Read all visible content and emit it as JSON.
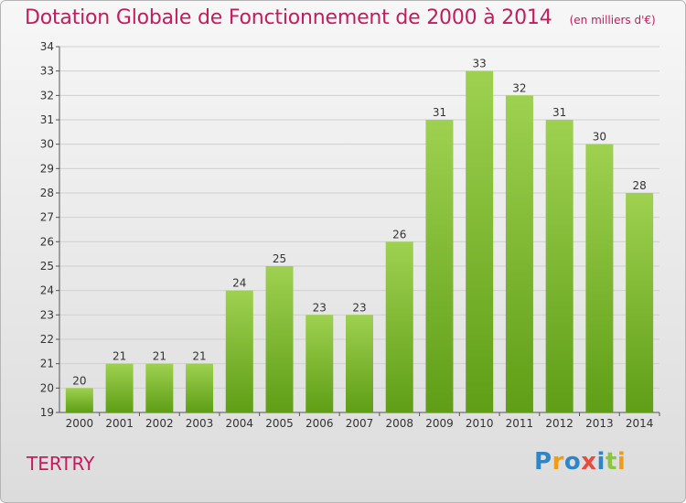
{
  "title": "Dotation Globale de Fonctionnement de 2000 à 2014",
  "unit": "(en milliers d'€)",
  "commune": "TERTRY",
  "logo": "Proxiti",
  "colors": {
    "title": "#c41c5c",
    "bar_top": "#9ed150",
    "bar_bottom": "#5f9e16"
  },
  "chart_data": {
    "type": "bar",
    "title": "Dotation Globale de Fonctionnement de 2000 à 2014",
    "subtitle": "(en milliers d'€)",
    "xlabel": "",
    "ylabel": "",
    "ylim": [
      19,
      34
    ],
    "yticks": [
      19,
      20,
      21,
      22,
      23,
      24,
      25,
      26,
      27,
      28,
      29,
      30,
      31,
      32,
      33,
      34
    ],
    "categories": [
      "2000",
      "2001",
      "2002",
      "2003",
      "2004",
      "2005",
      "2006",
      "2007",
      "2008",
      "2009",
      "2010",
      "2011",
      "2012",
      "2013",
      "2014"
    ],
    "values": [
      20,
      21,
      21,
      21,
      24,
      25,
      23,
      23,
      26,
      31,
      33,
      32,
      31,
      30,
      28
    ],
    "grid": true,
    "legend": "none"
  }
}
